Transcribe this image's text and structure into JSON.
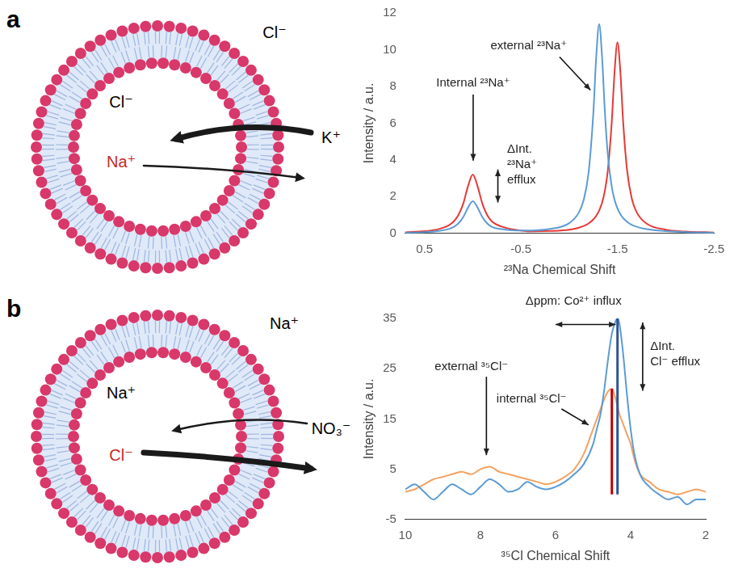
{
  "panels": [
    {
      "letter": "a",
      "diagram": {
        "outside": [
          {
            "text": "Cl⁻"
          },
          {
            "text": "K⁺"
          }
        ],
        "inside": [
          {
            "text": "Cl⁻"
          },
          {
            "text": "Na⁺",
            "color": "#c62828"
          }
        ]
      }
    },
    {
      "letter": "b",
      "diagram": {
        "outside": [
          {
            "text": "Na⁺"
          },
          {
            "text": "NO₃⁻"
          }
        ],
        "inside": [
          {
            "text": "Na⁺"
          },
          {
            "text": "Cl⁻",
            "color": "#c62828"
          }
        ]
      }
    }
  ],
  "chart_data": [
    {
      "type": "line",
      "x_label": "²³Na Chemical Shift",
      "y_label": "Intensity / a.u.",
      "x": [
        0.7,
        0.5,
        0.35,
        0.25,
        0.2,
        0.15,
        0.1,
        0.05,
        0,
        -0.05,
        -0.1,
        -0.15,
        -0.2,
        -0.3,
        -0.45,
        -0.6,
        -0.8,
        -1.0,
        -1.1,
        -1.15,
        -1.2,
        -1.25,
        -1.28,
        -1.31,
        -1.34,
        -1.37,
        -1.4,
        -1.44,
        -1.47,
        -1.5,
        -1.53,
        -1.56,
        -1.6,
        -1.65,
        -1.7,
        -1.8,
        -2.0,
        -2.2,
        -2.5
      ],
      "xlim": [
        0.7,
        -2.5
      ],
      "xticks": [
        0.5,
        -0.5,
        -1.5,
        -2.5
      ],
      "ylim": [
        0,
        12
      ],
      "yticks": [
        0,
        2,
        4,
        6,
        8,
        10,
        12
      ],
      "grid": false,
      "series": [
        {
          "color": "#5b9bd5",
          "values": [
            0.04,
            0.07,
            0.13,
            0.24,
            0.35,
            0.54,
            0.88,
            1.4,
            1.75,
            1.4,
            0.88,
            0.54,
            0.35,
            0.23,
            0.16,
            0.16,
            0.24,
            0.56,
            1.14,
            1.83,
            3.29,
            6.57,
            9.63,
            11.4,
            9.63,
            6.57,
            4.3,
            2.56,
            1.83,
            1.36,
            1.05,
            0.83,
            0.63,
            0.46,
            0.36,
            0.23,
            0.12,
            0.07,
            0.04
          ]
        },
        {
          "color": "#e53935",
          "values": [
            0.06,
            0.12,
            0.24,
            0.44,
            0.64,
            0.99,
            1.6,
            2.56,
            3.2,
            2.56,
            1.6,
            0.99,
            0.64,
            0.37,
            0.19,
            0.11,
            0.13,
            0.2,
            0.31,
            0.4,
            0.54,
            0.76,
            0.96,
            1.24,
            1.66,
            2.34,
            3.42,
            5.99,
            8.79,
            10.4,
            8.79,
            5.99,
            3.42,
            1.86,
            1.14,
            0.54,
            0.2,
            0.1,
            0.05
          ]
        }
      ],
      "annotations": [
        {
          "text": "Internal ²³Na⁺"
        },
        {
          "text": "external ²³Na⁺"
        },
        {
          "lines": [
            "ΔInt.",
            "²³Na⁺",
            "efflux"
          ]
        }
      ]
    },
    {
      "type": "line",
      "x_label": "³⁵Cl Chemical Shift",
      "y_label": "Intensity / a.u.",
      "x": [
        10,
        9.75,
        9.5,
        9.25,
        9,
        8.75,
        8.5,
        8.25,
        8,
        7.75,
        7.5,
        7.25,
        7,
        6.75,
        6.5,
        6.25,
        6,
        5.75,
        5.5,
        5.25,
        5,
        4.9,
        4.8,
        4.7,
        4.6,
        4.5,
        4.4,
        4.35,
        4.3,
        4.2,
        4.1,
        4,
        3.9,
        3.75,
        3.5,
        3.25,
        3,
        2.75,
        2.5,
        2.25,
        2
      ],
      "xlim": [
        10,
        2
      ],
      "xticks": [
        10,
        8,
        6,
        4,
        2
      ],
      "ylim": [
        -5,
        35
      ],
      "yticks": [
        -5,
        5,
        15,
        25,
        35
      ],
      "grid": false,
      "series": [
        {
          "color": "#5b9bd5",
          "values": [
            1,
            2,
            0.5,
            -1,
            0.5,
            2,
            1,
            0,
            1.5,
            3,
            2,
            0.5,
            1,
            2.5,
            1.5,
            1,
            1.5,
            2.5,
            4,
            6,
            10,
            13,
            16,
            21,
            27,
            32,
            34.5,
            35,
            34,
            28,
            20,
            13,
            8,
            4,
            1.5,
            0,
            -1,
            -0.5,
            -2,
            -1,
            -1
          ],
          "peak_line": {
            "x": 4.35,
            "y": [
              0,
              35
            ],
            "color": "#2f5597"
          }
        },
        {
          "color": "#f4a261",
          "values": [
            0.5,
            1,
            2,
            3,
            3.5,
            4,
            4.5,
            4,
            5,
            5.5,
            4.5,
            4,
            3.5,
            3,
            2.5,
            2,
            2.5,
            3.5,
            5,
            8,
            13,
            15,
            17,
            19,
            20.5,
            21,
            19,
            17.5,
            16,
            14,
            12,
            10,
            7,
            4,
            2.5,
            1,
            0.5,
            0,
            0.5,
            1,
            0.5
          ],
          "peak_line": {
            "x": 4.5,
            "y": [
              0,
              21
            ],
            "color": "#c00000"
          }
        }
      ],
      "annotations": [
        {
          "text": "Δppm: Co²⁺ influx"
        },
        {
          "text": "internal ³⁵Cl⁻"
        },
        {
          "text": "external ³⁵Cl⁻"
        },
        {
          "lines": [
            "ΔInt.",
            "Cl⁻ efflux"
          ]
        }
      ]
    }
  ]
}
